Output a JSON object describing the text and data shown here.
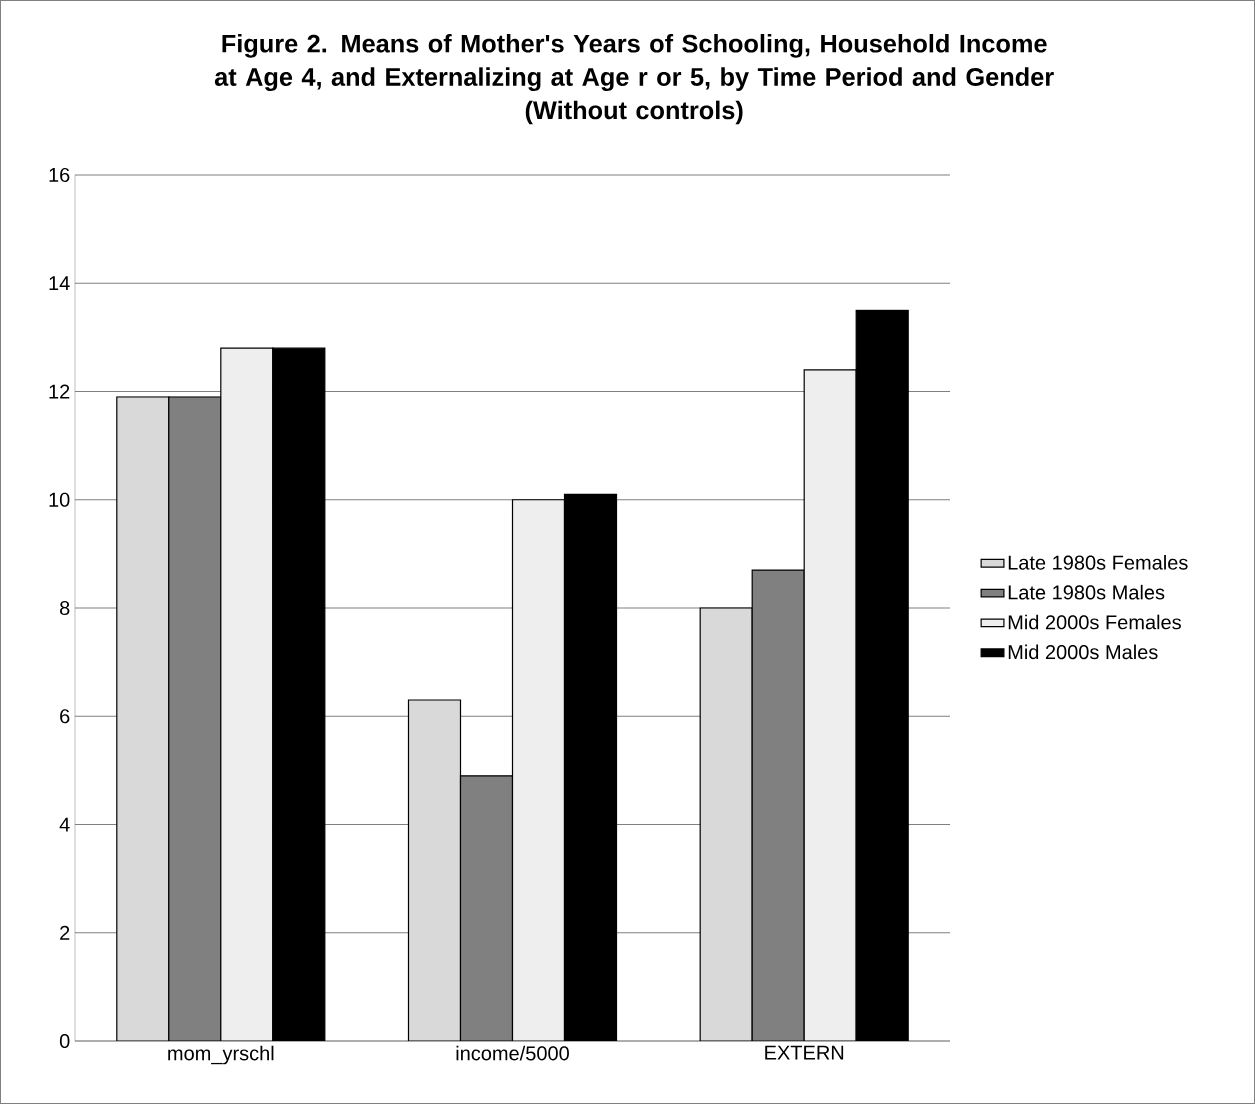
{
  "chart_data": {
    "type": "bar",
    "title": "Figure 2. Means of Mother's Years of Schooling, Household Income at Age 4, and Externalizing at Age r or 5, by Time Period and Gender",
    "subtitle": "(Without controls)",
    "categories": [
      "mom_yrschl",
      "income/5000",
      "EXTERN"
    ],
    "series": [
      {
        "name": "Late 1980s Females",
        "color": "#d9d9d9",
        "values": [
          11.9,
          6.3,
          8.0
        ]
      },
      {
        "name": "Late 1980s Males",
        "color": "#808080",
        "values": [
          11.9,
          4.9,
          8.7
        ]
      },
      {
        "name": "Mid 2000s Females",
        "color": "#eeeeee",
        "values": [
          12.8,
          10.0,
          12.4
        ]
      },
      {
        "name": "Mid 2000s Males",
        "color": "#000000",
        "values": [
          12.8,
          10.1,
          13.5
        ]
      }
    ],
    "ylim": [
      0,
      16
    ],
    "yticks": [
      0,
      2,
      4,
      6,
      8,
      10,
      12,
      14,
      16
    ],
    "grid": "y",
    "legend": "right"
  }
}
